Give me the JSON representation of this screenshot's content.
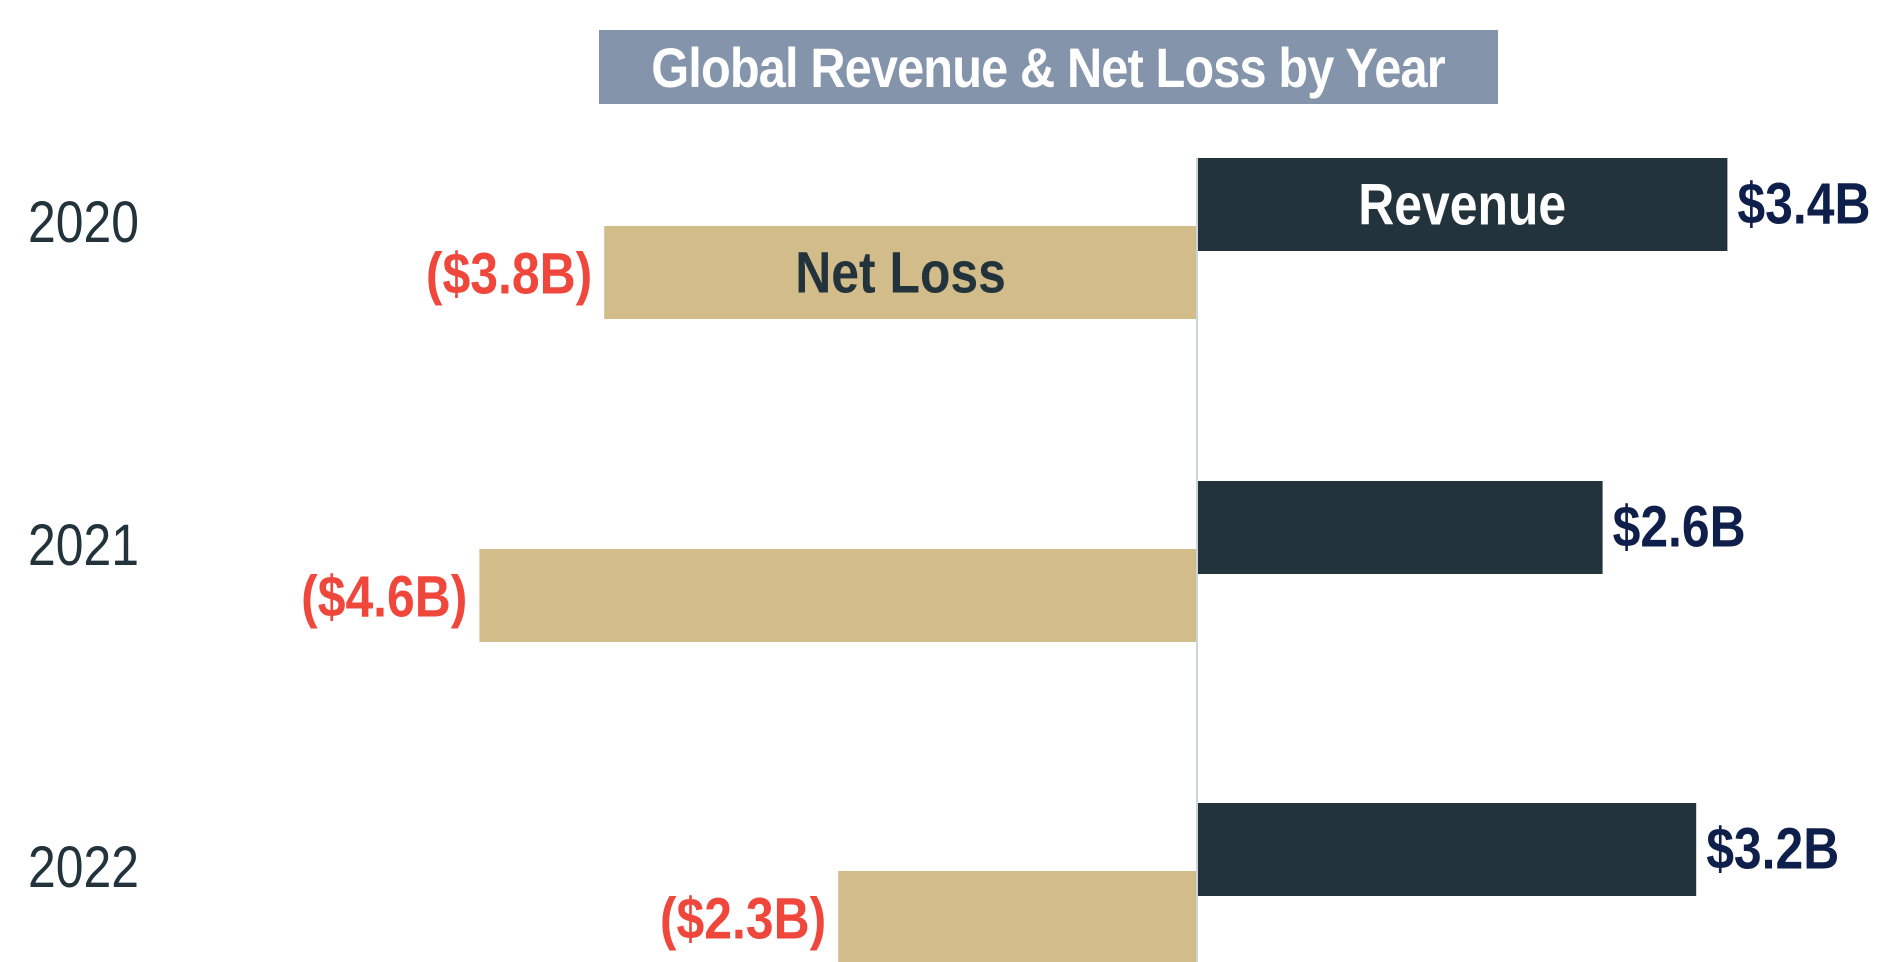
{
  "chart_data": {
    "type": "bar",
    "orientation": "horizontal-diverging",
    "title": "Global Revenue & Net Loss by Year",
    "categories": [
      "2020",
      "2021",
      "2022"
    ],
    "series": [
      {
        "name": "Revenue",
        "values": [
          3.4,
          2.6,
          3.2
        ],
        "labels": [
          "$3.4B",
          "$2.6B",
          "$3.2B"
        ],
        "color": "#22333b",
        "label_color": "#0f1f4b"
      },
      {
        "name": "Net Loss",
        "values": [
          -3.8,
          -4.6,
          -2.3
        ],
        "labels": [
          "($3.8B)",
          "($4.6B)",
          "($2.3B)"
        ],
        "color": "#d1bc8a",
        "label_color": "#f0473d"
      }
    ],
    "xlim": [
      -4.6,
      3.4
    ],
    "grid": false,
    "legend": "inline labels on first bars"
  },
  "colors": {
    "title_background": "#8494ab",
    "title_text": "#ffffff",
    "category_text": "#22333b",
    "revenue_inline_label": "#ffffff",
    "net_loss_inline_label": "#22333b",
    "axis_line": "#c8d6dc"
  }
}
